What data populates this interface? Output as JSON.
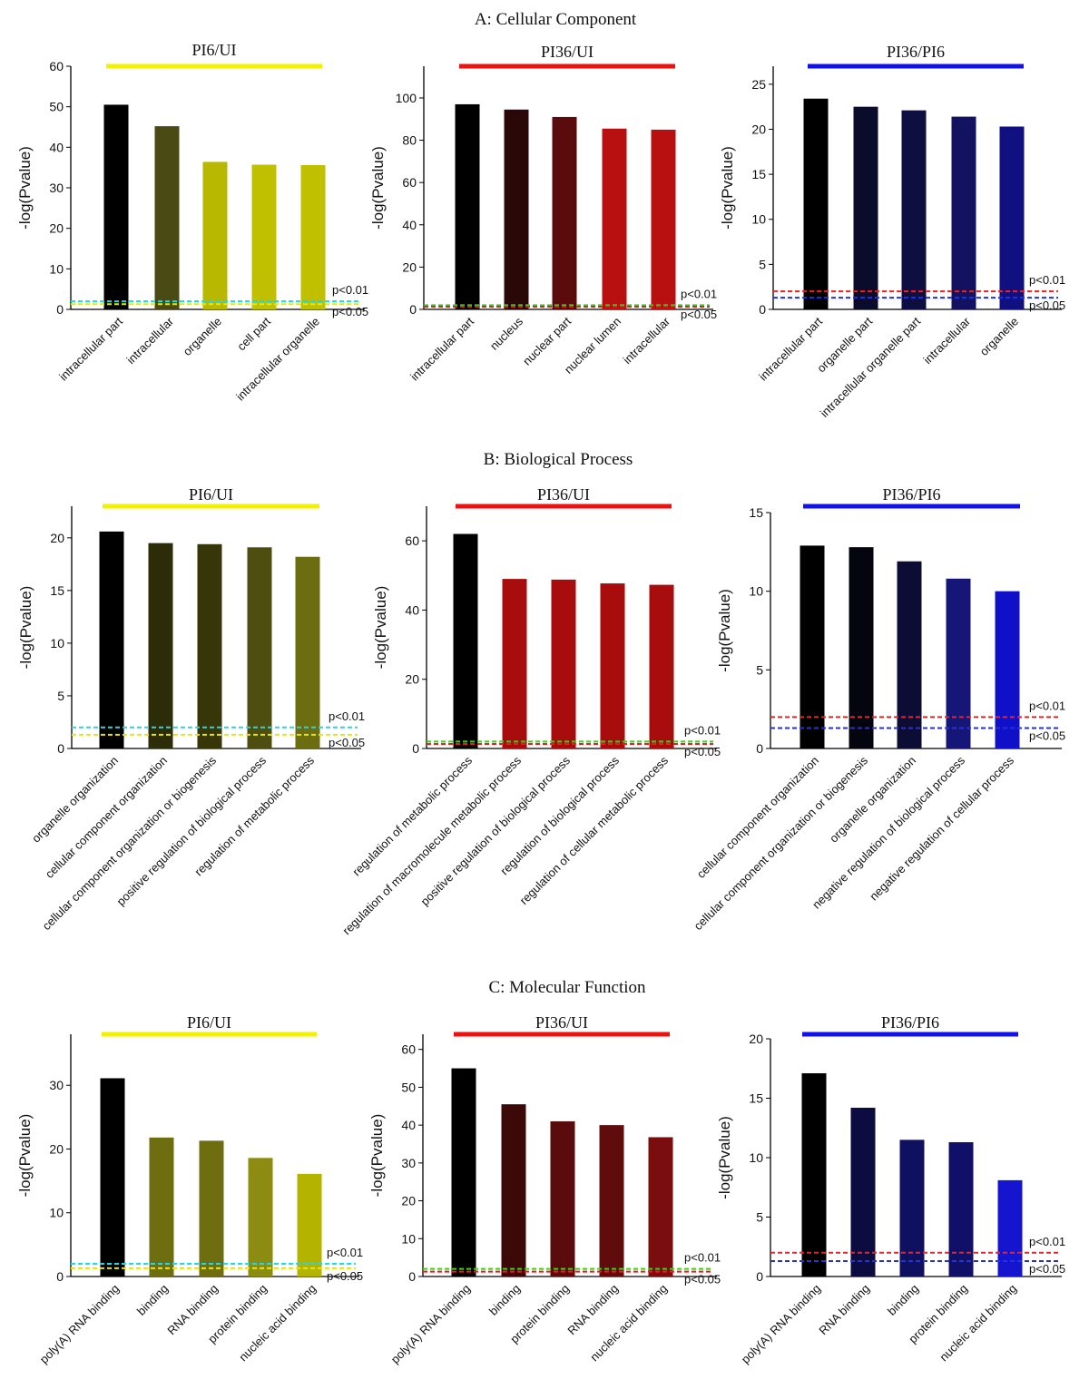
{
  "sections": [
    {
      "title": "A: Cellular Component"
    },
    {
      "title": "B:  Biological Process"
    },
    {
      "title": "C: Molecular Function"
    }
  ],
  "chart_data": [
    {
      "type": "bar",
      "section": "A: Cellular Component",
      "title": "PI6/UI",
      "ylabel": "-log(Pvalue)",
      "ylim": [
        0,
        60
      ],
      "yticks": [
        0,
        10,
        20,
        30,
        40,
        50,
        60
      ],
      "title_bar_color": "#f2f200",
      "categories": [
        "intracellular part",
        "intracellular",
        "organelle",
        "cell part",
        "intracellular organelle"
      ],
      "values": [
        50.5,
        45.2,
        36.4,
        35.7,
        35.6
      ],
      "colors": [
        "#000000",
        "#4a4a14",
        "#b8b800",
        "#c0c000",
        "#c0c000"
      ],
      "thresholds": [
        {
          "label": "p<0.01",
          "value": 2.0,
          "color": "#22d8e8"
        },
        {
          "label": "p<0.05",
          "value": 1.3,
          "color": "#e8e800"
        }
      ]
    },
    {
      "type": "bar",
      "section": "A: Cellular Component",
      "title": "PI36/UI",
      "ylabel": "-log(Pvalue)",
      "ylim": [
        0,
        115
      ],
      "yticks": [
        0,
        20,
        40,
        60,
        80,
        100
      ],
      "title_bar_color": "#ee1111",
      "categories": [
        "intracellular part",
        "nucleus",
        "nuclear part",
        "nuclear lumen",
        "intracellular"
      ],
      "values": [
        97,
        94.5,
        91,
        85.5,
        85
      ],
      "colors": [
        "#000000",
        "#2a0808",
        "#5a0c0c",
        "#b81010",
        "#b81010"
      ],
      "thresholds": [
        {
          "label": "p<0.01",
          "value": 2.0,
          "color": "#44cc22"
        },
        {
          "label": "p<0.05",
          "value": 1.3,
          "color": "#dd2222"
        }
      ]
    },
    {
      "type": "bar",
      "section": "A: Cellular Component",
      "title": "PI36/PI6",
      "ylabel": "-log(Pvalue)",
      "ylim": [
        0,
        27
      ],
      "yticks": [
        0,
        5,
        10,
        15,
        20,
        25
      ],
      "title_bar_color": "#1111ee",
      "categories": [
        "intracellular part",
        "organelle part",
        "intracellular organelle part",
        "intracellular",
        "organelle"
      ],
      "values": [
        23.4,
        22.5,
        22.1,
        21.4,
        20.3
      ],
      "colors": [
        "#000000",
        "#0b0b2c",
        "#0e0e40",
        "#121260",
        "#101080"
      ],
      "thresholds": [
        {
          "label": "p<0.01",
          "value": 2.0,
          "color": "#ee2222"
        },
        {
          "label": "p<0.05",
          "value": 1.3,
          "color": "#2233dd"
        }
      ]
    },
    {
      "type": "bar",
      "section": "B:  Biological Process",
      "title": "PI6/UI",
      "ylabel": "-log(Pvalue)",
      "ylim": [
        0,
        23
      ],
      "yticks": [
        0,
        5,
        10,
        15,
        20
      ],
      "title_bar_color": "#f2f200",
      "categories": [
        "organelle organization",
        "cellular component organization",
        "cellular component organization or biogenesis",
        "positive regulation of biological process",
        "regulation of metabolic process"
      ],
      "values": [
        20.6,
        19.5,
        19.4,
        19.1,
        18.2
      ],
      "colors": [
        "#000000",
        "#2c2c08",
        "#363608",
        "#4e4e10",
        "#6c6c10"
      ],
      "thresholds": [
        {
          "label": "p<0.01",
          "value": 2.0,
          "color": "#22d8e8"
        },
        {
          "label": "p<0.05",
          "value": 1.3,
          "color": "#e8e800"
        }
      ]
    },
    {
      "type": "bar",
      "section": "B:  Biological Process",
      "title": "PI36/UI",
      "ylabel": "-log(Pvalue)",
      "ylim": [
        0,
        70
      ],
      "yticks": [
        0,
        20,
        40,
        60
      ],
      "title_bar_color": "#ee1111",
      "categories": [
        "regulation of metabolic process",
        "regulation of macromolecule metabolic process",
        "positive regulation of biological process",
        "regulation of biological process",
        "regulation of cellular metabolic process"
      ],
      "values": [
        62,
        49,
        48.8,
        47.7,
        47.3
      ],
      "colors": [
        "#000000",
        "#a80c0c",
        "#a80c0c",
        "#a80c0c",
        "#a80c0c"
      ],
      "thresholds": [
        {
          "label": "p<0.01",
          "value": 2.0,
          "color": "#44cc22"
        },
        {
          "label": "p<0.05",
          "value": 1.3,
          "color": "#dd2222"
        }
      ]
    },
    {
      "type": "bar",
      "section": "B:  Biological Process",
      "title": "PI36/PI6",
      "ylabel": "-log(Pvalue)",
      "ylim": [
        0,
        15
      ],
      "yticks": [
        0,
        5,
        10,
        15
      ],
      "title_bar_color": "#1111ee",
      "categories": [
        "cellular component organization",
        "cellular component organization or biogenesis",
        "organelle organization",
        "negative regulation of biological process",
        "negative regulation of cellular process"
      ],
      "values": [
        12.9,
        12.8,
        11.9,
        10.8,
        10.0
      ],
      "colors": [
        "#000000",
        "#050510",
        "#0c0c34",
        "#161678",
        "#1010c8"
      ],
      "thresholds": [
        {
          "label": "p<0.01",
          "value": 2.0,
          "color": "#ee2222"
        },
        {
          "label": "p<0.05",
          "value": 1.3,
          "color": "#2233dd"
        }
      ]
    },
    {
      "type": "bar",
      "section": "C: Molecular Function",
      "title": "PI6/UI",
      "ylabel": "-log(Pvalue)",
      "ylim": [
        0,
        38
      ],
      "yticks": [
        0,
        10,
        20,
        30
      ],
      "title_bar_color": "#f2f200",
      "categories": [
        "poly(A) RNA binding",
        "binding",
        "RNA binding",
        "protein binding",
        "nucleic acid binding"
      ],
      "values": [
        31.1,
        21.8,
        21.3,
        18.6,
        16.1
      ],
      "colors": [
        "#000000",
        "#6e6e10",
        "#6e6e10",
        "#8c8c10",
        "#b4b400"
      ],
      "thresholds": [
        {
          "label": "p<0.01",
          "value": 2.0,
          "color": "#22d8e8"
        },
        {
          "label": "p<0.05",
          "value": 1.3,
          "color": "#e8e800"
        }
      ]
    },
    {
      "type": "bar",
      "section": "C: Molecular Function",
      "title": "PI36/UI",
      "ylabel": "-log(Pvalue)",
      "ylim": [
        0,
        64
      ],
      "yticks": [
        0,
        10,
        20,
        30,
        40,
        50,
        60
      ],
      "title_bar_color": "#ee1111",
      "categories": [
        "poly(A) RNA binding",
        "binding",
        "protein binding",
        "RNA binding",
        "nucleic acid binding"
      ],
      "values": [
        55,
        45.5,
        41,
        40,
        36.8
      ],
      "colors": [
        "#000000",
        "#3c0808",
        "#5a0c0c",
        "#600c0c",
        "#7a0e0e"
      ],
      "thresholds": [
        {
          "label": "p<0.01",
          "value": 2.0,
          "color": "#44cc22"
        },
        {
          "label": "p<0.05",
          "value": 1.3,
          "color": "#dd2222"
        }
      ]
    },
    {
      "type": "bar",
      "section": "C: Molecular Function",
      "title": "PI36/PI6",
      "ylabel": "-log(Pvalue)",
      "ylim": [
        0,
        20
      ],
      "yticks": [
        0,
        5,
        10,
        15,
        20
      ],
      "title_bar_color": "#1111ee",
      "categories": [
        "poly(A) RNA binding",
        "RNA binding",
        "binding",
        "protein binding",
        "nucleic acid binding"
      ],
      "values": [
        17.1,
        14.2,
        11.5,
        11.3,
        8.1
      ],
      "colors": [
        "#000000",
        "#0c0c40",
        "#101060",
        "#101068",
        "#1515d0"
      ],
      "thresholds": [
        {
          "label": "p<0.01",
          "value": 2.0,
          "color": "#ee2222"
        },
        {
          "label": "p<0.05",
          "value": 1.3,
          "color": "#2233dd"
        }
      ]
    }
  ]
}
